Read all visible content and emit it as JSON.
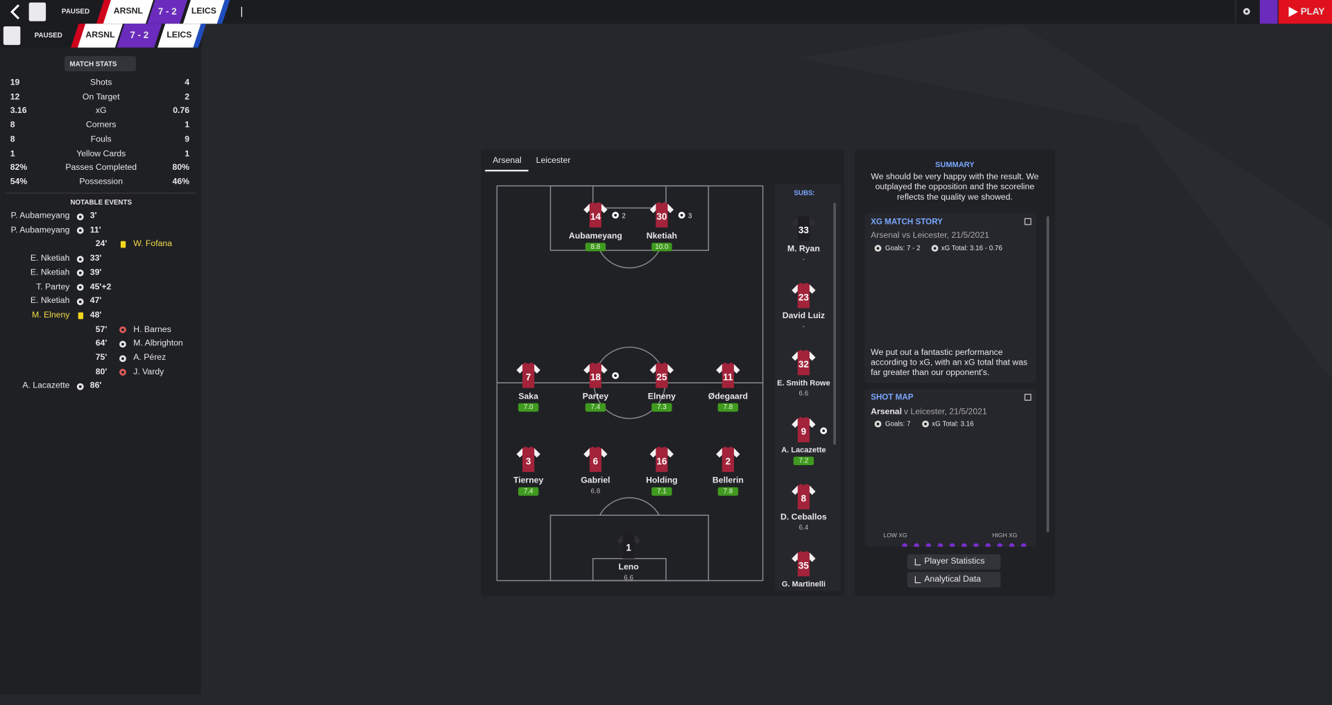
{
  "header": {
    "status": "PAUSED",
    "home": "ARSNL",
    "score": "7 - 2",
    "away": "LEICS",
    "play": "PLAY"
  },
  "match_stats": {
    "title": "MATCH STATS",
    "rows": [
      [
        "19",
        "Shots",
        "4"
      ],
      [
        "12",
        "On Target",
        "2"
      ],
      [
        "3.16",
        "xG",
        "0.76"
      ],
      [
        "8",
        "Corners",
        "1"
      ],
      [
        "8",
        "Fouls",
        "9"
      ],
      [
        "1",
        "Yellow Cards",
        "1"
      ],
      [
        "82%",
        "Passes Completed",
        "80%"
      ],
      [
        "54%",
        "Possession",
        "46%"
      ]
    ]
  },
  "notable_events": {
    "title": "NOTABLE EVENTS",
    "events": [
      {
        "side": "home",
        "player": "P. Aubameyang",
        "minute": "3'",
        "icon": "ball"
      },
      {
        "side": "home",
        "player": "P. Aubameyang",
        "minute": "11'",
        "icon": "ball"
      },
      {
        "side": "away",
        "player": "W. Fofana",
        "minute": "24'",
        "icon": "yellow-card"
      },
      {
        "side": "home",
        "player": "E. Nketiah",
        "minute": "33'",
        "icon": "ball"
      },
      {
        "side": "home",
        "player": "E. Nketiah",
        "minute": "39'",
        "icon": "ball"
      },
      {
        "side": "home",
        "player": "T. Partey",
        "minute": "45'+2",
        "icon": "ball"
      },
      {
        "side": "home",
        "player": "E. Nketiah",
        "minute": "47'",
        "icon": "ball"
      },
      {
        "side": "home",
        "player": "M. Elneny",
        "minute": "48'",
        "icon": "yellow-card"
      },
      {
        "side": "away",
        "player": "H. Barnes",
        "minute": "57'",
        "icon": "red-ball"
      },
      {
        "side": "away",
        "player": "M. Albrighton",
        "minute": "64'",
        "icon": "ball"
      },
      {
        "side": "away",
        "player": "A. Pérez",
        "minute": "75'",
        "icon": "ball"
      },
      {
        "side": "away",
        "player": "J. Vardy",
        "minute": "80'",
        "icon": "red-ball"
      },
      {
        "side": "home",
        "player": "A. Lacazette",
        "minute": "86'",
        "icon": "ball"
      }
    ]
  },
  "lineup": {
    "tabs": [
      "Arsenal",
      "Leicester"
    ],
    "players": [
      {
        "number": "14",
        "name": "Aubameyang",
        "rating": "8.8",
        "scored": true,
        "goals": "2"
      },
      {
        "number": "30",
        "name": "Nketiah",
        "rating": "10.0",
        "scored": true,
        "goals": "3"
      },
      {
        "number": "7",
        "name": "Saka",
        "rating": "7.0"
      },
      {
        "number": "18",
        "name": "Partey",
        "rating": "7.4",
        "scored": true
      },
      {
        "number": "25",
        "name": "Elneny",
        "rating": "7.3"
      },
      {
        "number": "11",
        "name": "Ødegaard",
        "rating": "7.8"
      },
      {
        "number": "3",
        "name": "Tierney",
        "rating": "7.4"
      },
      {
        "number": "6",
        "name": "Gabriel",
        "rating": "6.8"
      },
      {
        "number": "16",
        "name": "Holding",
        "rating": "7.1"
      },
      {
        "number": "2",
        "name": "Bellerin",
        "rating": "7.8"
      },
      {
        "number": "1",
        "name": "Leno",
        "rating": "6.6"
      }
    ],
    "subs_title": "SUBS:",
    "subs": [
      {
        "number": "33",
        "name": "M. Ryan",
        "rating": "-"
      },
      {
        "number": "23",
        "name": "David Luiz",
        "rating": "-"
      },
      {
        "number": "32",
        "name": "E. Smith Rowe",
        "rating": "6.6"
      },
      {
        "number": "9",
        "name": "A. Lacazette",
        "rating": "7.2",
        "scored": true
      },
      {
        "number": "8",
        "name": "D. Ceballos",
        "rating": "6.4"
      },
      {
        "number": "35",
        "name": "G. Martinelli",
        "rating": "-"
      }
    ]
  },
  "summary": {
    "title": "SUMMARY",
    "text": "We should be very happy with the result. We outplayed the opposition and the scoreline reflects the quality we showed."
  },
  "xg_story": {
    "title": "XG MATCH STORY",
    "subtitle": "Arsenal vs Leicester, 21/5/2021",
    "goals": "Goals: 7 - 2",
    "xg_total": "xG Total: 3.16 - 0.76",
    "text": "We put out a fantastic performance according to xG, with an xG total that was far greater than our opponent's."
  },
  "shot_map": {
    "title": "SHOT MAP",
    "team": "Arsenal",
    "subtitle": "v Leicester, 21/5/2021",
    "goals": "Goals: 7",
    "xg_total": "xG Total: 3.16",
    "low": "LOW XG",
    "high": "HIGH XG"
  },
  "buttons": [
    "Player Statistics",
    "Analytical Data"
  ]
}
